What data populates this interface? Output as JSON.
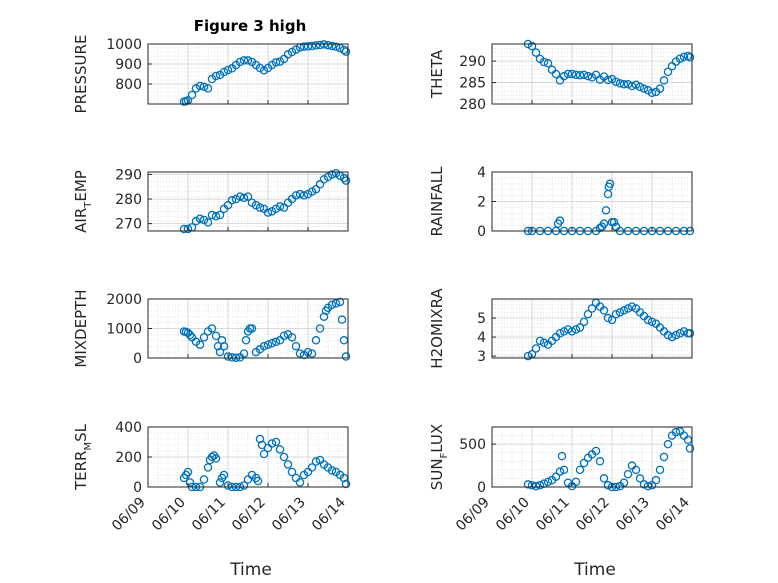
{
  "figure": {
    "title": "Figure 3 high",
    "xlabel": "Time",
    "marker_color": "#0072BD",
    "grid_color": "#d0d0d0",
    "axis_color": "#262626"
  },
  "chart_data": [
    {
      "type": "scatter",
      "panel": "PRESSURE",
      "ylabel": "PRESSURE",
      "ylim": [
        700,
        1000
      ],
      "yticks": [
        800,
        900,
        1000
      ],
      "xlim": [
        "06/09",
        "06/14"
      ],
      "xticks": [
        "06/09",
        "06/10",
        "06/11",
        "06/12",
        "06/13",
        "06/14"
      ],
      "show_x_ticks": false,
      "grid": "major+minor",
      "series": [
        {
          "x": [
            0.9,
            0.95,
            1.0,
            1.1,
            1.2,
            1.3,
            1.4,
            1.5,
            1.6,
            1.7,
            1.8,
            1.9,
            2.0,
            2.1,
            2.2,
            2.3,
            2.4,
            2.5,
            2.6,
            2.7,
            2.8,
            2.9,
            3.0,
            3.1,
            3.2,
            3.3,
            3.4,
            3.5,
            3.6,
            3.7,
            3.8,
            3.9,
            4.0,
            4.1,
            4.2,
            4.3,
            4.4,
            4.5,
            4.6,
            4.7,
            4.8,
            4.9,
            4.95
          ],
          "y": [
            712,
            714,
            718,
            745,
            778,
            790,
            786,
            778,
            825,
            840,
            845,
            860,
            870,
            878,
            895,
            910,
            918,
            918,
            910,
            895,
            880,
            868,
            880,
            895,
            908,
            912,
            925,
            948,
            960,
            972,
            983,
            987,
            988,
            990,
            993,
            995,
            998,
            994,
            990,
            986,
            980,
            970,
            962
          ]
        }
      ]
    },
    {
      "type": "scatter",
      "panel": "THETA",
      "ylabel": "THETA",
      "ylim": [
        280,
        294
      ],
      "yticks": [
        280,
        285,
        290
      ],
      "xlim": [
        "06/09",
        "06/14"
      ],
      "show_x_ticks": false,
      "grid": "major+minor",
      "series": [
        {
          "x": [
            0.9,
            1.0,
            1.1,
            1.2,
            1.3,
            1.4,
            1.5,
            1.6,
            1.7,
            1.8,
            1.9,
            2.0,
            2.1,
            2.2,
            2.3,
            2.4,
            2.5,
            2.6,
            2.7,
            2.8,
            2.9,
            3.0,
            3.1,
            3.2,
            3.3,
            3.4,
            3.5,
            3.6,
            3.7,
            3.8,
            3.9,
            4.0,
            4.1,
            4.2,
            4.3,
            4.4,
            4.5,
            4.6,
            4.7,
            4.8,
            4.9,
            4.95
          ],
          "y": [
            294,
            293.5,
            292,
            290.5,
            289.8,
            289.5,
            288,
            287,
            285.5,
            286.5,
            287,
            287,
            286.8,
            286.7,
            286.8,
            286.5,
            286.2,
            286.8,
            285.7,
            286.4,
            285.6,
            285.8,
            285.2,
            284.8,
            284.6,
            284.6,
            284.2,
            284.5,
            284,
            283.6,
            283.2,
            282.6,
            282.8,
            283.6,
            285.5,
            287.5,
            288.8,
            289.9,
            290.6,
            291,
            291.2,
            290.9
          ]
        }
      ]
    },
    {
      "type": "scatter",
      "panel": "AIR_TEMP",
      "ylabel_main": "AIR",
      "ylabel_sub": "T",
      "ylabel_rest": "EMP",
      "ylim": [
        267,
        291
      ],
      "yticks": [
        270,
        280,
        290
      ],
      "xlim": [
        "06/09",
        "06/14"
      ],
      "show_x_ticks": false,
      "grid": "major+minor",
      "series": [
        {
          "x": [
            0.9,
            1.0,
            1.1,
            1.2,
            1.3,
            1.4,
            1.5,
            1.6,
            1.7,
            1.8,
            1.9,
            2.0,
            2.1,
            2.2,
            2.3,
            2.4,
            2.5,
            2.6,
            2.7,
            2.8,
            2.9,
            3.0,
            3.1,
            3.2,
            3.3,
            3.4,
            3.5,
            3.6,
            3.7,
            3.8,
            3.9,
            4.0,
            4.1,
            4.2,
            4.3,
            4.4,
            4.5,
            4.6,
            4.7,
            4.8,
            4.9,
            4.95
          ],
          "y": [
            267.8,
            267.8,
            268.5,
            271,
            272,
            271.5,
            270.5,
            273.5,
            273,
            273.5,
            276,
            277.5,
            279.5,
            280,
            281,
            280.5,
            281,
            278.5,
            277.5,
            276.5,
            276,
            274.5,
            275,
            276,
            277,
            276.5,
            278.5,
            280,
            281.5,
            282,
            281.5,
            282,
            283,
            284,
            286,
            288,
            289,
            290,
            290.5,
            289.5,
            288.5,
            287.5
          ]
        }
      ]
    },
    {
      "type": "scatter",
      "panel": "RAINFALL",
      "ylabel": "RAINFALL",
      "ylim": [
        0,
        4
      ],
      "yticks": [
        0,
        2,
        4
      ],
      "xlim": [
        "06/09",
        "06/14"
      ],
      "show_x_ticks": false,
      "grid": "major+minor",
      "series": [
        {
          "x": [
            0.9,
            1.0,
            1.2,
            1.4,
            1.6,
            1.65,
            1.7,
            1.8,
            2.0,
            2.2,
            2.4,
            2.6,
            2.7,
            2.75,
            2.8,
            2.85,
            2.9,
            2.92,
            2.95,
            3.0,
            3.05,
            3.1,
            3.2,
            3.4,
            3.6,
            3.8,
            4.0,
            4.2,
            4.4,
            4.6,
            4.8,
            4.95
          ],
          "y": [
            0,
            0,
            0,
            0,
            0,
            0.5,
            0.7,
            0,
            0,
            0,
            0,
            0,
            0.2,
            0.3,
            0.5,
            1.4,
            2.5,
            3.0,
            3.2,
            0.6,
            0.6,
            0.3,
            0,
            0,
            0,
            0,
            0,
            0,
            0,
            0,
            0,
            0
          ]
        }
      ]
    },
    {
      "type": "scatter",
      "panel": "MIXDEPTH",
      "ylabel": "MIXDEPTH",
      "ylim": [
        0,
        2000
      ],
      "yticks": [
        0,
        1000,
        2000
      ],
      "xlim": [
        "06/09",
        "06/14"
      ],
      "show_x_ticks": false,
      "grid": "major+minor",
      "series": [
        {
          "x": [
            0.9,
            0.95,
            1.0,
            1.05,
            1.1,
            1.2,
            1.3,
            1.4,
            1.5,
            1.6,
            1.7,
            1.75,
            1.8,
            1.85,
            1.9,
            2.0,
            2.1,
            2.2,
            2.3,
            2.4,
            2.45,
            2.5,
            2.55,
            2.6,
            2.7,
            2.8,
            2.9,
            3.0,
            3.1,
            3.2,
            3.3,
            3.4,
            3.5,
            3.6,
            3.7,
            3.8,
            3.9,
            4.0,
            4.1,
            4.2,
            4.3,
            4.4,
            4.45,
            4.5,
            4.6,
            4.7,
            4.8,
            4.85,
            4.9,
            4.95
          ],
          "y": [
            900,
            880,
            850,
            780,
            700,
            550,
            450,
            700,
            900,
            1000,
            750,
            400,
            200,
            600,
            400,
            50,
            20,
            10,
            20,
            150,
            600,
            900,
            1000,
            1000,
            200,
            300,
            400,
            450,
            500,
            550,
            600,
            750,
            800,
            700,
            400,
            150,
            100,
            200,
            150,
            600,
            1000,
            1400,
            1600,
            1700,
            1800,
            1850,
            1900,
            1300,
            600,
            50
          ]
        }
      ]
    },
    {
      "type": "scatter",
      "panel": "H2OMIXRA",
      "ylabel": "H2OMIXRA",
      "ylim": [
        2.9,
        6.0
      ],
      "yticks": [
        3,
        4,
        5
      ],
      "xlim": [
        "06/09",
        "06/14"
      ],
      "show_x_ticks": false,
      "grid": "major+minor",
      "series": [
        {
          "x": [
            0.9,
            1.0,
            1.1,
            1.2,
            1.3,
            1.4,
            1.5,
            1.6,
            1.7,
            1.8,
            1.9,
            2.0,
            2.1,
            2.2,
            2.3,
            2.4,
            2.5,
            2.6,
            2.7,
            2.8,
            2.9,
            3.0,
            3.1,
            3.2,
            3.3,
            3.4,
            3.5,
            3.6,
            3.7,
            3.8,
            3.9,
            4.0,
            4.1,
            4.2,
            4.3,
            4.4,
            4.5,
            4.6,
            4.7,
            4.8,
            4.9,
            4.95
          ],
          "y": [
            3.0,
            3.1,
            3.4,
            3.8,
            3.7,
            3.6,
            3.8,
            4.0,
            4.2,
            4.3,
            4.4,
            4.3,
            4.4,
            4.5,
            4.8,
            5.2,
            5.5,
            5.8,
            5.6,
            5.4,
            5.0,
            4.9,
            5.2,
            5.3,
            5.4,
            5.5,
            5.6,
            5.5,
            5.3,
            5.1,
            4.9,
            4.8,
            4.7,
            4.5,
            4.3,
            4.1,
            4.0,
            4.1,
            4.2,
            4.3,
            4.2,
            4.2
          ]
        }
      ]
    },
    {
      "type": "scatter",
      "panel": "TERR_MSL",
      "ylabel_main": "TERR",
      "ylabel_sub": "M",
      "ylabel_rest": "SL",
      "ylim": [
        0,
        400
      ],
      "yticks": [
        0,
        200,
        400
      ],
      "xlim": [
        "06/09",
        "06/14"
      ],
      "xticks": [
        "06/09",
        "06/10",
        "06/11",
        "06/12",
        "06/13",
        "06/14"
      ],
      "show_x_ticks": true,
      "grid": "major+minor",
      "series": [
        {
          "x": [
            0.9,
            0.95,
            1.0,
            1.05,
            1.1,
            1.2,
            1.3,
            1.4,
            1.5,
            1.55,
            1.6,
            1.65,
            1.7,
            1.8,
            1.85,
            1.9,
            2.0,
            2.1,
            2.2,
            2.3,
            2.4,
            2.5,
            2.6,
            2.7,
            2.75,
            2.8,
            2.85,
            2.9,
            3.0,
            3.1,
            3.2,
            3.3,
            3.4,
            3.5,
            3.6,
            3.7,
            3.8,
            3.9,
            4.0,
            4.1,
            4.2,
            4.3,
            4.4,
            4.5,
            4.6,
            4.7,
            4.8,
            4.9,
            4.95
          ],
          "y": [
            60,
            80,
            100,
            30,
            0,
            0,
            0,
            50,
            130,
            180,
            200,
            210,
            190,
            30,
            60,
            80,
            10,
            0,
            0,
            0,
            10,
            50,
            80,
            60,
            40,
            320,
            280,
            220,
            260,
            290,
            300,
            250,
            200,
            150,
            100,
            60,
            30,
            80,
            100,
            130,
            170,
            180,
            150,
            130,
            110,
            100,
            80,
            60,
            20
          ]
        }
      ]
    },
    {
      "type": "scatter",
      "panel": "SUN_FLUX",
      "ylabel_main": "SUN",
      "ylabel_sub": "F",
      "ylabel_rest": "LUX",
      "ylim": [
        0,
        700
      ],
      "yticks": [
        0,
        500
      ],
      "xlim": [
        "06/09",
        "06/14"
      ],
      "xticks": [
        "06/09",
        "06/10",
        "06/11",
        "06/12",
        "06/13",
        "06/14"
      ],
      "show_x_ticks": true,
      "grid": "major+minor",
      "series": [
        {
          "x": [
            0.9,
            1.0,
            1.1,
            1.2,
            1.3,
            1.4,
            1.5,
            1.6,
            1.7,
            1.75,
            1.8,
            1.9,
            2.0,
            2.1,
            2.2,
            2.3,
            2.4,
            2.5,
            2.6,
            2.7,
            2.8,
            2.9,
            3.0,
            3.1,
            3.2,
            3.3,
            3.4,
            3.5,
            3.6,
            3.7,
            3.8,
            3.9,
            4.0,
            4.1,
            4.2,
            4.3,
            4.4,
            4.5,
            4.6,
            4.7,
            4.8,
            4.9,
            4.95
          ],
          "y": [
            30,
            20,
            10,
            20,
            40,
            60,
            80,
            120,
            180,
            360,
            200,
            50,
            10,
            60,
            200,
            280,
            340,
            380,
            420,
            300,
            100,
            20,
            0,
            0,
            10,
            50,
            150,
            250,
            200,
            100,
            30,
            10,
            20,
            80,
            200,
            350,
            500,
            600,
            640,
            650,
            600,
            550,
            450
          ]
        }
      ]
    }
  ]
}
